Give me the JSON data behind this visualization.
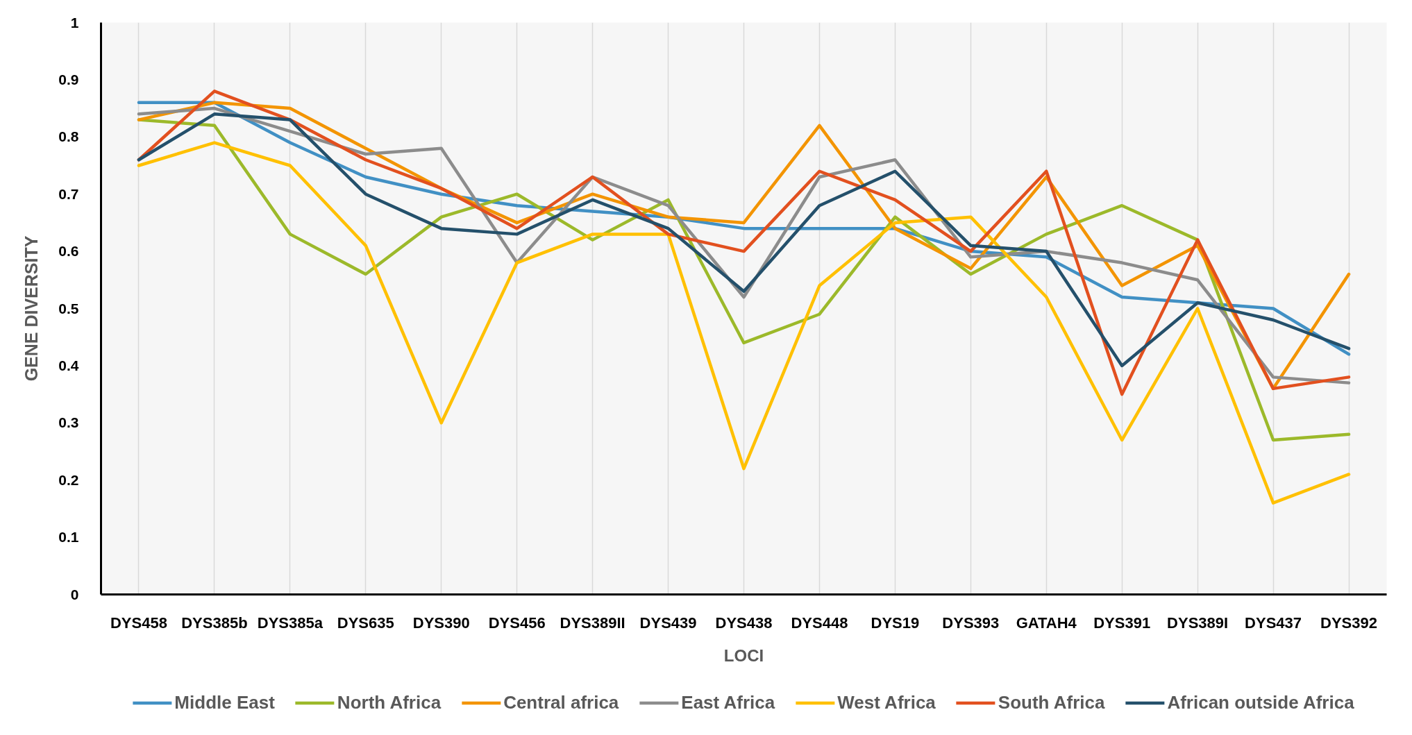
{
  "chart_data": {
    "type": "line",
    "categories": [
      "DYS458",
      "DYS385b",
      "DYS385a",
      "DYS635",
      "DYS390",
      "DYS456",
      "DYS389II",
      "DYS439",
      "DYS438",
      "DYS448",
      "DYS19",
      "DYS393",
      "GATAH4",
      "DYS391",
      "DYS389I",
      "DYS437",
      "DYS392"
    ],
    "series": [
      {
        "name": "Middle East",
        "color": "#4190c4",
        "values": [
          0.86,
          0.86,
          0.79,
          0.73,
          0.7,
          0.68,
          0.67,
          0.66,
          0.64,
          0.64,
          0.64,
          0.6,
          0.59,
          0.52,
          0.51,
          0.5,
          0.42
        ]
      },
      {
        "name": "North Africa",
        "color": "#9cb92a",
        "values": [
          0.83,
          0.82,
          0.63,
          0.56,
          0.66,
          0.7,
          0.62,
          0.69,
          0.44,
          0.49,
          0.66,
          0.56,
          0.63,
          0.68,
          0.62,
          0.27,
          0.28
        ]
      },
      {
        "name": "Central africa",
        "color": "#f39400",
        "values": [
          0.83,
          0.86,
          0.85,
          0.78,
          0.71,
          0.65,
          0.7,
          0.66,
          0.65,
          0.82,
          0.64,
          0.57,
          0.73,
          0.54,
          0.61,
          0.36,
          0.56
        ]
      },
      {
        "name": "East Africa",
        "color": "#8c8c8c",
        "values": [
          0.84,
          0.85,
          0.81,
          0.77,
          0.78,
          0.58,
          0.73,
          0.68,
          0.52,
          0.73,
          0.76,
          0.59,
          0.6,
          0.58,
          0.55,
          0.38,
          0.37
        ]
      },
      {
        "name": "West Africa",
        "color": "#ffc000",
        "values": [
          0.75,
          0.79,
          0.75,
          0.61,
          0.3,
          0.58,
          0.63,
          0.63,
          0.22,
          0.54,
          0.65,
          0.66,
          0.52,
          0.27,
          0.5,
          0.16,
          0.21
        ]
      },
      {
        "name": "South Africa",
        "color": "#e2501f",
        "values": [
          0.76,
          0.88,
          0.83,
          0.76,
          0.71,
          0.64,
          0.73,
          0.63,
          0.6,
          0.74,
          0.69,
          0.6,
          0.74,
          0.35,
          0.62,
          0.36,
          0.38
        ]
      },
      {
        "name": "African outside Africa",
        "color": "#24506b",
        "values": [
          0.76,
          0.84,
          0.83,
          0.7,
          0.64,
          0.63,
          0.69,
          0.64,
          0.53,
          0.68,
          0.74,
          0.61,
          0.6,
          0.4,
          0.51,
          0.48,
          0.43
        ]
      }
    ],
    "xlabel": "LOCI",
    "ylabel": "GENE DIVERSITY",
    "ylim": [
      0,
      1
    ],
    "yticks": [
      0,
      0.1,
      0.2,
      0.3,
      0.4,
      0.5,
      0.6,
      0.7,
      0.8,
      0.9,
      1
    ],
    "grid": "x",
    "legend": "bottom"
  }
}
